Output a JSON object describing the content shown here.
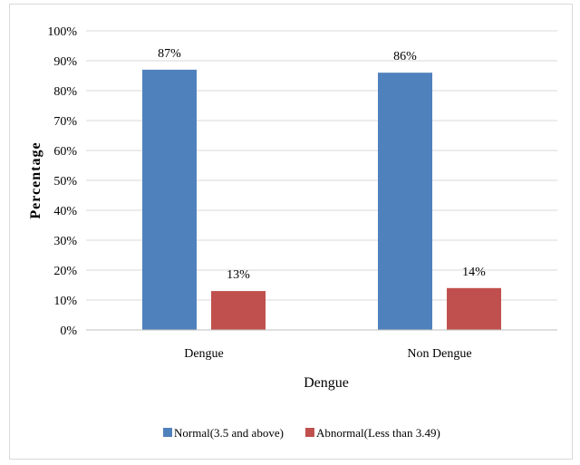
{
  "chart_data": {
    "type": "bar",
    "categories": [
      "Dengue",
      "Non Dengue"
    ],
    "series": [
      {
        "name": "Normal(3.5 and above)",
        "values": [
          87,
          86
        ],
        "labels": [
          "87%",
          "86%"
        ],
        "color": "#4f81bd"
      },
      {
        "name": "Abnormal(Less than 3.49)",
        "values": [
          13,
          14
        ],
        "labels": [
          "13%",
          "14%"
        ],
        "color": "#c0504d"
      }
    ],
    "xlabel": "Dengue",
    "ylabel": "Percentage",
    "ylim": [
      0,
      100
    ],
    "yticks": [
      0,
      10,
      20,
      30,
      40,
      50,
      60,
      70,
      80,
      90,
      100
    ],
    "ytick_labels": [
      "0%",
      "10%",
      "20%",
      "30%",
      "40%",
      "50%",
      "60%",
      "70%",
      "80%",
      "90%",
      "100%"
    ],
    "grid": true,
    "grid_color": "#d9d9d9",
    "legend_position": "bottom"
  }
}
